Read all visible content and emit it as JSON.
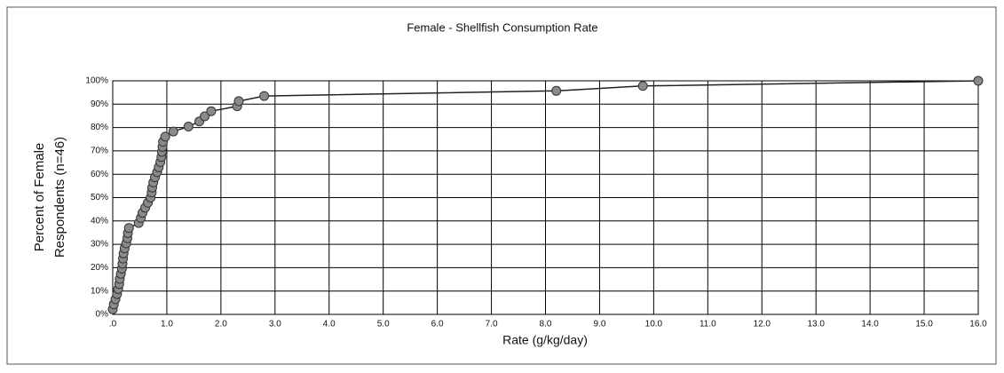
{
  "chart_data": {
    "type": "scatter",
    "title": "Female - Shellfish Consumption Rate",
    "xlabel": "Rate (g/kg/day)",
    "ylabel": [
      "Percent of Female",
      "Respondents (n=46)"
    ],
    "x": [
      0.0,
      0.02,
      0.05,
      0.08,
      0.1,
      0.12,
      0.13,
      0.15,
      0.17,
      0.18,
      0.19,
      0.2,
      0.22,
      0.25,
      0.27,
      0.28,
      0.3,
      0.48,
      0.52,
      0.55,
      0.6,
      0.65,
      0.7,
      0.72,
      0.73,
      0.75,
      0.78,
      0.82,
      0.85,
      0.88,
      0.9,
      0.91,
      0.92,
      0.93,
      0.97,
      1.12,
      1.4,
      1.6,
      1.7,
      1.82,
      2.3,
      2.33,
      2.8,
      8.2,
      9.8,
      16.0
    ],
    "values": [
      2.2,
      4.3,
      6.5,
      8.7,
      10.9,
      13.0,
      15.2,
      17.4,
      19.6,
      21.7,
      23.9,
      26.1,
      28.3,
      30.4,
      32.6,
      34.8,
      37.0,
      39.1,
      41.3,
      43.5,
      45.7,
      47.8,
      50.0,
      52.2,
      54.3,
      56.5,
      58.7,
      60.9,
      63.0,
      65.2,
      67.4,
      69.6,
      71.7,
      73.9,
      76.1,
      78.3,
      80.4,
      82.6,
      84.8,
      87.0,
      89.1,
      91.3,
      93.5,
      95.7,
      97.8,
      100
    ],
    "color": "#8a8a8a",
    "line_color": "#222222",
    "xlim": [
      0,
      16
    ],
    "ylim": [
      0,
      100
    ],
    "xticks": [
      {
        "value": 0,
        "label": ".0"
      },
      {
        "value": 1,
        "label": "1.0"
      },
      {
        "value": 2,
        "label": "2.0"
      },
      {
        "value": 3,
        "label": "3.0"
      },
      {
        "value": 4,
        "label": "4.0"
      },
      {
        "value": 5,
        "label": "5.0"
      },
      {
        "value": 6,
        "label": "6.0"
      },
      {
        "value": 7,
        "label": "7.0"
      },
      {
        "value": 8,
        "label": "8.0"
      },
      {
        "value": 9,
        "label": "9.0"
      },
      {
        "value": 10,
        "label": "10.0"
      },
      {
        "value": 11,
        "label": "11.0"
      },
      {
        "value": 12,
        "label": "12.0"
      },
      {
        "value": 13,
        "label": "13.0"
      },
      {
        "value": 14,
        "label": "14.0"
      },
      {
        "value": 15,
        "label": "15.0"
      },
      {
        "value": 16,
        "label": "16.0"
      }
    ],
    "yticks": [
      {
        "value": 0,
        "label": "0%"
      },
      {
        "value": 10,
        "label": "10%"
      },
      {
        "value": 20,
        "label": "20%"
      },
      {
        "value": 30,
        "label": "30%"
      },
      {
        "value": 40,
        "label": "40%"
      },
      {
        "value": 50,
        "label": "50%"
      },
      {
        "value": 60,
        "label": "60%"
      },
      {
        "value": 70,
        "label": "70%"
      },
      {
        "value": 80,
        "label": "80%"
      },
      {
        "value": 90,
        "label": "90%"
      },
      {
        "value": 100,
        "label": "100%"
      }
    ],
    "grid": true
  }
}
